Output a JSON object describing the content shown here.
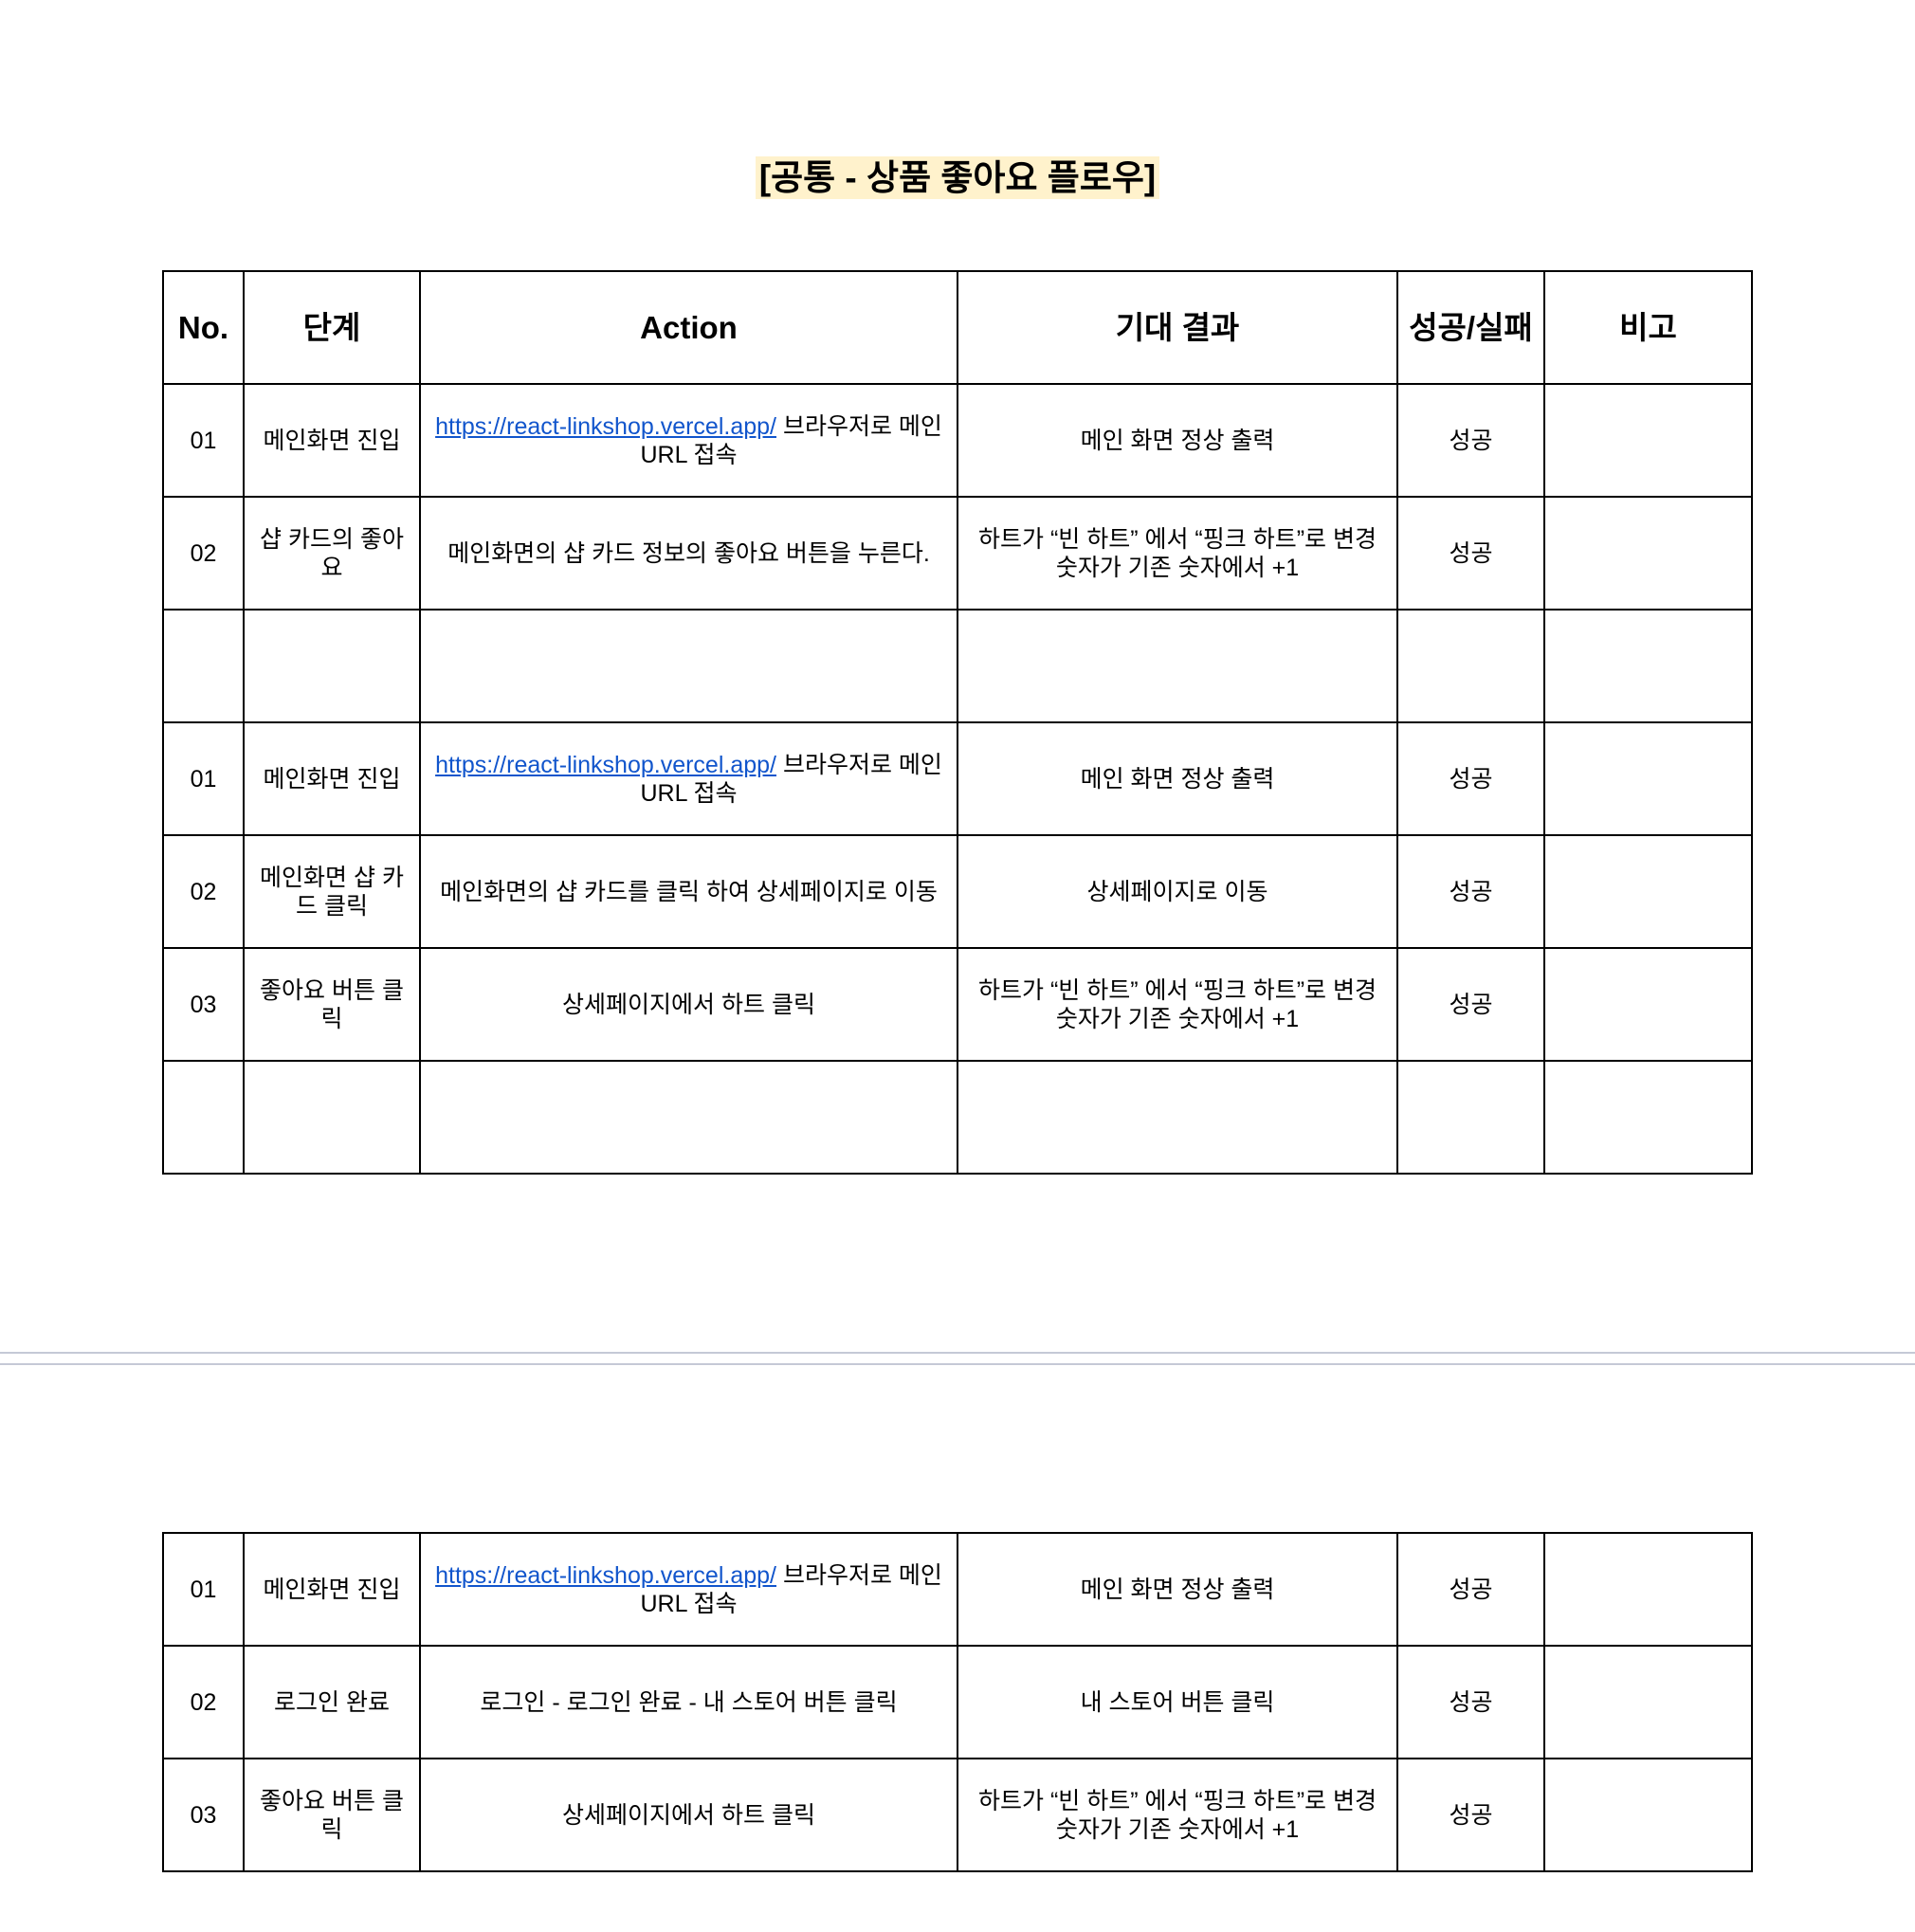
{
  "document": {
    "title": "[공통 - 상품 좋아요 플로우]"
  },
  "table": {
    "headers": {
      "no": "No.",
      "step": "단계",
      "action": "Action",
      "expected": "기대 결과",
      "result": "성공/실패",
      "note": "비고"
    }
  },
  "section1": {
    "rows": [
      {
        "no": "01",
        "step": "메인화면 진입",
        "action_link": "https://react-linkshop.vercel.app/",
        "action_text": " 브라우저로 메인 URL 접속",
        "expected": "메인 화면 정상 출력",
        "result": "성공",
        "note": ""
      },
      {
        "no": "02",
        "step": "샵 카드의 좋아요",
        "action_text": "메인화면의 샵 카드 정보의 좋아요 버튼을 누른다.",
        "expected": "하트가 “빈 하트” 에서 “핑크 하트”로 변경 숫자가 기존 숫자에서 +1",
        "result": "성공",
        "note": ""
      },
      {
        "no": "",
        "step": "",
        "action_text": "",
        "expected": "",
        "result": "",
        "note": ""
      },
      {
        "no": "01",
        "step": "메인화면 진입",
        "action_link": "https://react-linkshop.vercel.app/",
        "action_text": " 브라우저로 메인 URL 접속",
        "expected": "메인 화면 정상 출력",
        "result": "성공",
        "note": ""
      },
      {
        "no": "02",
        "step": "메인화면 샵 카드 클릭",
        "action_text": "메인화면의 샵 카드를 클릭 하여 상세페이지로 이동",
        "expected": "상세페이지로 이동",
        "result": "성공",
        "note": ""
      },
      {
        "no": "03",
        "step": "좋아요 버튼 클릭",
        "action_text": "상세페이지에서 하트 클릭",
        "expected": "하트가 “빈 하트” 에서 “핑크 하트”로 변경 숫자가 기존 숫자에서 +1",
        "result": "성공",
        "note": ""
      },
      {
        "no": "",
        "step": "",
        "action_text": "",
        "expected": "",
        "result": "",
        "note": ""
      }
    ]
  },
  "section2": {
    "rows": [
      {
        "no": "01",
        "step": "메인화면 진입",
        "action_link": "https://react-linkshop.vercel.app/",
        "action_text": " 브라우저로 메인 URL 접속",
        "expected": "메인 화면 정상 출력",
        "result": "성공",
        "note": ""
      },
      {
        "no": "02",
        "step": "로그인 완료",
        "action_text": "로그인 - 로그인 완료 - 내 스토어 버튼 클릭",
        "expected": "내 스토어 버튼 클릭",
        "result": "성공",
        "note": ""
      },
      {
        "no": "03",
        "step": "좋아요 버튼 클릭",
        "action_text": "상세페이지에서 하트 클릭",
        "expected": "하트가 “빈 하트” 에서 “핑크 하트”로 변경 숫자가 기존 숫자에서 +1",
        "result": "성공",
        "note": ""
      }
    ]
  }
}
